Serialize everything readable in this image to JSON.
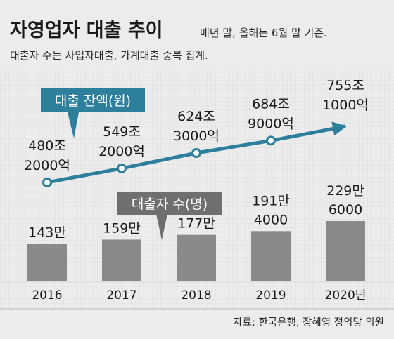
{
  "header": {
    "title": "자영업자 대출 추이",
    "note_line1": "매년 말, 올해는 6월 말 기준.",
    "note_line2": "대출자 수는 사업자대출, 가계대출 중복 집계."
  },
  "source": "자료: 한국은행, 장혜영 정의당 의원",
  "colors": {
    "background": "#ececec",
    "line_teal": "#2d7f9b",
    "bar_gray": "#8a8a8a",
    "callout_gray": "#6f6f6f"
  },
  "chart_data": [
    {
      "type": "line",
      "legend_label": "대출 잔액(원)",
      "categories": [
        "2016",
        "2017",
        "2018",
        "2019",
        "2020년"
      ],
      "values": [
        480.2,
        549.2,
        624.3,
        684.9,
        755.1
      ],
      "value_unit": "조원",
      "data_labels": [
        [
          "480조",
          "2000억"
        ],
        [
          "549조",
          "2000억"
        ],
        [
          "624조",
          "3000억"
        ],
        [
          "684조",
          "9000억"
        ],
        [
          "755조",
          "1000억"
        ]
      ]
    },
    {
      "type": "bar",
      "legend_label": "대출자 수(명)",
      "categories": [
        "2016",
        "2017",
        "2018",
        "2019",
        "2020년"
      ],
      "values": [
        143,
        159,
        177,
        191.4,
        229.6
      ],
      "value_unit": "만명",
      "data_labels": [
        [
          "143만"
        ],
        [
          "159만"
        ],
        [
          "177만"
        ],
        [
          "191만",
          "4000"
        ],
        [
          "229만",
          "6000"
        ]
      ]
    }
  ]
}
